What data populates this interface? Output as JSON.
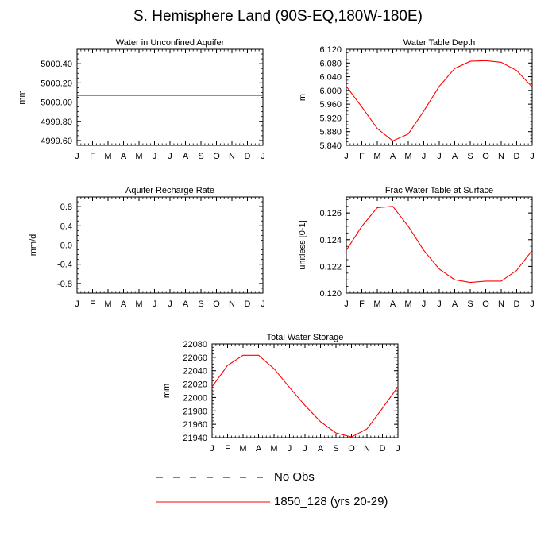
{
  "figure_title": "S. Hemisphere Land (90S-EQ,180W-180E)",
  "legend": [
    {
      "label": "No Obs",
      "style": "dashed",
      "color": "#000000"
    },
    {
      "label": "1850_128 (yrs 20-29)",
      "style": "solid",
      "color": "#ff0000"
    }
  ],
  "chart_data": [
    {
      "type": "line",
      "title": "Water in Unconfined Aquifer",
      "ylabel": "mm",
      "ylim": [
        4999.55,
        5000.55
      ],
      "yticks": [
        4999.6,
        4999.8,
        5000.0,
        5000.2,
        5000.4
      ],
      "ytick_labels": [
        "4999.60",
        "4999.80",
        "5000.00",
        "5000.20",
        "5000.40"
      ],
      "x": [
        0,
        1,
        2,
        3,
        4,
        5,
        6,
        7,
        8,
        9,
        10,
        11,
        12
      ],
      "categories": [
        "J",
        "F",
        "M",
        "A",
        "M",
        "J",
        "J",
        "A",
        "S",
        "O",
        "N",
        "D",
        "J"
      ],
      "series": [
        {
          "name": "1850_128 (yrs 20-29)",
          "color": "#ff0000",
          "values": [
            5000.07,
            5000.07,
            5000.07,
            5000.07,
            5000.07,
            5000.07,
            5000.07,
            5000.07,
            5000.07,
            5000.07,
            5000.07,
            5000.07,
            5000.07
          ]
        }
      ]
    },
    {
      "type": "line",
      "title": "Water Table Depth",
      "ylabel": "m",
      "ylim": [
        5.84,
        6.12
      ],
      "yticks": [
        5.84,
        5.88,
        5.92,
        5.96,
        6.0,
        6.04,
        6.08,
        6.12
      ],
      "ytick_labels": [
        "5.840",
        "5.880",
        "5.920",
        "5.960",
        "6.000",
        "6.040",
        "6.080",
        "6.120"
      ],
      "x": [
        0,
        1,
        2,
        3,
        4,
        5,
        6,
        7,
        8,
        9,
        10,
        11,
        12
      ],
      "categories": [
        "J",
        "F",
        "M",
        "A",
        "M",
        "J",
        "J",
        "A",
        "S",
        "O",
        "N",
        "D",
        "J"
      ],
      "series": [
        {
          "name": "1850_128 (yrs 20-29)",
          "color": "#ff0000",
          "values": [
            6.012,
            5.952,
            5.889,
            5.853,
            5.873,
            5.94,
            6.012,
            6.064,
            6.085,
            6.087,
            6.082,
            6.058,
            6.01
          ]
        }
      ]
    },
    {
      "type": "line",
      "title": "Aquifer Recharge Rate",
      "ylabel": "mm/d",
      "ylim": [
        -1.0,
        1.0
      ],
      "yticks": [
        -0.8,
        -0.4,
        0.0,
        0.4,
        0.8
      ],
      "ytick_labels": [
        "-0.8",
        "-0.4",
        "0.0",
        "0.4",
        "0.8"
      ],
      "x": [
        0,
        1,
        2,
        3,
        4,
        5,
        6,
        7,
        8,
        9,
        10,
        11,
        12
      ],
      "categories": [
        "J",
        "F",
        "M",
        "A",
        "M",
        "J",
        "J",
        "A",
        "S",
        "O",
        "N",
        "D",
        "J"
      ],
      "series": [
        {
          "name": "1850_128 (yrs 20-29)",
          "color": "#ff0000",
          "values": [
            0,
            0,
            0,
            0,
            0,
            0,
            0,
            0,
            0,
            0,
            0,
            0,
            0
          ]
        }
      ]
    },
    {
      "type": "line",
      "title": "Frac Water Table at Surface",
      "ylabel": "unitless [0-1]",
      "ylim": [
        0.12,
        0.1272
      ],
      "yticks": [
        0.12,
        0.122,
        0.124,
        0.126
      ],
      "ytick_labels": [
        "0.120",
        "0.122",
        "0.124",
        "0.126"
      ],
      "x": [
        0,
        1,
        2,
        3,
        4,
        5,
        6,
        7,
        8,
        9,
        10,
        11,
        12
      ],
      "categories": [
        "J",
        "F",
        "M",
        "A",
        "M",
        "J",
        "J",
        "A",
        "S",
        "O",
        "N",
        "D",
        "J"
      ],
      "series": [
        {
          "name": "1850_128 (yrs 20-29)",
          "color": "#ff0000",
          "values": [
            0.1232,
            0.125,
            0.1264,
            0.1265,
            0.125,
            0.1232,
            0.1218,
            0.121,
            0.1208,
            0.1209,
            0.1209,
            0.1217,
            0.1232
          ]
        }
      ]
    },
    {
      "type": "line",
      "title": "Total Water Storage",
      "ylabel": "mm",
      "ylim": [
        21940,
        22080
      ],
      "yticks": [
        21940,
        21960,
        21980,
        22000,
        22020,
        22040,
        22060,
        22080
      ],
      "ytick_labels": [
        "21940",
        "21960",
        "21980",
        "22000",
        "22020",
        "22040",
        "22060",
        "22080"
      ],
      "x": [
        0,
        1,
        2,
        3,
        4,
        5,
        6,
        7,
        8,
        9,
        10,
        11,
        12
      ],
      "categories": [
        "J",
        "F",
        "M",
        "A",
        "M",
        "J",
        "J",
        "A",
        "S",
        "O",
        "N",
        "D",
        "J"
      ],
      "series": [
        {
          "name": "1850_128 (yrs 20-29)",
          "color": "#ff0000",
          "values": [
            22016,
            22048,
            22063,
            22063,
            22043,
            22015,
            21988,
            21964,
            21947,
            21941,
            21953,
            21984,
            22016
          ]
        }
      ]
    }
  ]
}
